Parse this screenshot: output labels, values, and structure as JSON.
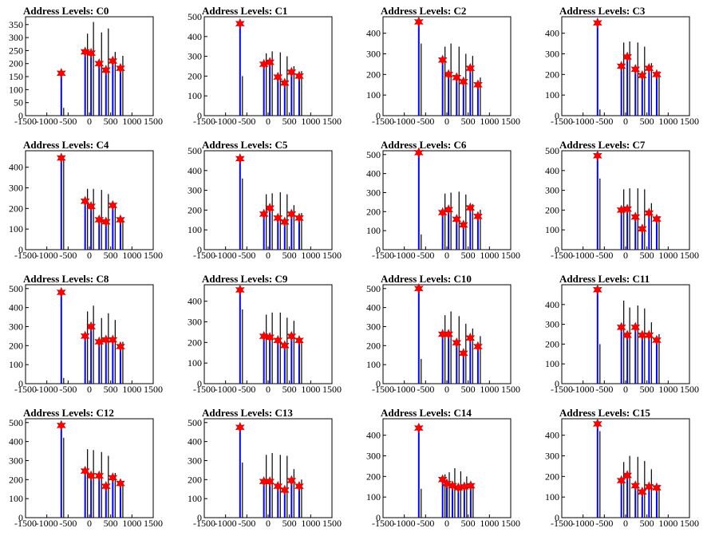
{
  "colors": {
    "frame": "#000000",
    "black_lines": "#000000",
    "blue_lines": "#0000ff",
    "markers": "#ff0000"
  },
  "chart_data": [
    {
      "type": "bar",
      "title": "Address Levels: C0",
      "xlim": [
        -1500,
        1500
      ],
      "ylim": [
        0,
        380
      ],
      "xticks": [
        "-1500",
        "-1000",
        "-500",
        "0",
        "500",
        "1000",
        "1500"
      ],
      "yticks": [
        "0",
        "50",
        "100",
        "150",
        "200",
        "250",
        "300",
        "350"
      ],
      "x": [
        -660,
        -100,
        40,
        230,
        390,
        550,
        730
      ],
      "black_values": [
        30,
        315,
        360,
        320,
        335,
        245,
        230
      ],
      "blue_values": [
        165,
        250,
        250,
        210,
        180,
        220,
        185
      ],
      "star_values": [
        163,
        245,
        240,
        200,
        175,
        210,
        182
      ]
    },
    {
      "type": "bar",
      "title": "Address Levels: C1",
      "xlim": [
        -1500,
        1500
      ],
      "ylim": [
        0,
        500
      ],
      "xticks": [
        "-1500",
        "-1000",
        "-500",
        "0",
        "500",
        "1000",
        "1500"
      ],
      "yticks": [
        "0",
        "100",
        "200",
        "300",
        "400",
        "500"
      ],
      "x": [
        -660,
        -100,
        40,
        230,
        390,
        550,
        730
      ],
      "black_values": [
        200,
        315,
        325,
        320,
        300,
        250,
        225
      ],
      "blue_values": [
        470,
        270,
        280,
        200,
        175,
        230,
        210
      ],
      "star_values": [
        465,
        260,
        270,
        195,
        165,
        220,
        200
      ]
    },
    {
      "type": "bar",
      "title": "Address Levels: C2",
      "xlim": [
        -1500,
        1500
      ],
      "ylim": [
        0,
        480
      ],
      "xticks": [
        "-1500",
        "-1000",
        "-500",
        "0",
        "500",
        "1000",
        "1500"
      ],
      "yticks": [
        "0",
        "100",
        "200",
        "300",
        "400"
      ],
      "x": [
        -660,
        -100,
        40,
        230,
        390,
        550,
        730
      ],
      "black_values": [
        350,
        335,
        350,
        335,
        300,
        290,
        185
      ],
      "blue_values": [
        460,
        280,
        210,
        195,
        175,
        240,
        155
      ],
      "star_values": [
        455,
        270,
        200,
        185,
        165,
        230,
        150
      ]
    },
    {
      "type": "bar",
      "title": "Address Levels: C3",
      "xlim": [
        -1500,
        1500
      ],
      "ylim": [
        0,
        480
      ],
      "xticks": [
        "-1500",
        "-1000",
        "-500",
        "0",
        "500",
        "1000",
        "1500"
      ],
      "yticks": [
        "0",
        "100",
        "200",
        "300",
        "400"
      ],
      "x": [
        -660,
        -100,
        40,
        230,
        390,
        550,
        730
      ],
      "black_values": [
        30,
        355,
        360,
        355,
        335,
        255,
        215
      ],
      "blue_values": [
        455,
        245,
        295,
        235,
        205,
        240,
        210
      ],
      "star_values": [
        450,
        240,
        285,
        225,
        195,
        230,
        200
      ]
    },
    {
      "type": "bar",
      "title": "Address Levels: C4",
      "xlim": [
        -1500,
        1500
      ],
      "ylim": [
        0,
        480
      ],
      "xticks": [
        "-1500",
        "-1000",
        "-500",
        "0",
        "500",
        "1000",
        "1500"
      ],
      "yticks": [
        "0",
        "100",
        "200",
        "300",
        "400"
      ],
      "x": [
        -660,
        -100,
        40,
        230,
        390,
        550,
        730
      ],
      "black_values": [
        440,
        295,
        295,
        290,
        270,
        225,
        155
      ],
      "blue_values": [
        450,
        245,
        220,
        150,
        145,
        225,
        150
      ],
      "star_values": [
        445,
        235,
        210,
        145,
        135,
        215,
        145
      ]
    },
    {
      "type": "bar",
      "title": "Address Levels: C5",
      "xlim": [
        -1500,
        1500
      ],
      "ylim": [
        0,
        500
      ],
      "xticks": [
        "-1500",
        "-1000",
        "-500",
        "0",
        "500",
        "1000",
        "1500"
      ],
      "yticks": [
        "0",
        "100",
        "200",
        "300",
        "400",
        "500"
      ],
      "x": [
        -660,
        -100,
        40,
        230,
        390,
        550,
        730
      ],
      "black_values": [
        360,
        280,
        285,
        290,
        280,
        225,
        185
      ],
      "blue_values": [
        470,
        190,
        220,
        170,
        150,
        190,
        165
      ],
      "star_values": [
        460,
        180,
        210,
        160,
        140,
        180,
        160
      ]
    },
    {
      "type": "bar",
      "title": "Address Levels: C6",
      "xlim": [
        -1500,
        1500
      ],
      "ylim": [
        0,
        520
      ],
      "xticks": [
        "-1500",
        "-1000",
        "-500",
        "0",
        "500",
        "1000",
        "1500"
      ],
      "yticks": [
        "0",
        "100",
        "200",
        "300",
        "400",
        "500"
      ],
      "x": [
        -660,
        -100,
        40,
        230,
        390,
        550,
        730
      ],
      "black_values": [
        80,
        295,
        300,
        305,
        290,
        240,
        210
      ],
      "blue_values": [
        515,
        205,
        215,
        170,
        140,
        225,
        180
      ],
      "star_values": [
        510,
        195,
        210,
        160,
        130,
        220,
        175
      ]
    },
    {
      "type": "bar",
      "title": "Address Levels: C7",
      "xlim": [
        -1500,
        1500
      ],
      "ylim": [
        0,
        500
      ],
      "xticks": [
        "-1500",
        "-1000",
        "-500",
        "0",
        "500",
        "1000",
        "1500"
      ],
      "yticks": [
        "0",
        "100",
        "200",
        "300",
        "400",
        "500"
      ],
      "x": [
        -660,
        -100,
        40,
        230,
        390,
        550,
        730
      ],
      "black_values": [
        360,
        305,
        310,
        310,
        305,
        235,
        170
      ],
      "blue_values": [
        485,
        210,
        215,
        175,
        110,
        190,
        165
      ],
      "star_values": [
        475,
        200,
        205,
        165,
        105,
        185,
        155
      ]
    },
    {
      "type": "bar",
      "title": "Address Levels: C8",
      "xlim": [
        -1500,
        1500
      ],
      "ylim": [
        0,
        520
      ],
      "xticks": [
        "-1500",
        "-1000",
        "-500",
        "0",
        "500",
        "1000",
        "1500"
      ],
      "yticks": [
        "0",
        "100",
        "200",
        "300",
        "400",
        "500"
      ],
      "x": [
        -660,
        -100,
        40,
        230,
        390,
        550,
        730
      ],
      "black_values": [
        30,
        380,
        410,
        345,
        370,
        335,
        220
      ],
      "blue_values": [
        490,
        255,
        305,
        225,
        240,
        235,
        200
      ],
      "star_values": [
        480,
        250,
        300,
        220,
        230,
        230,
        195
      ]
    },
    {
      "type": "bar",
      "title": "Address Levels: C9",
      "xlim": [
        -1500,
        1500
      ],
      "ylim": [
        0,
        480
      ],
      "xticks": [
        "-1500",
        "-1000",
        "-500",
        "0",
        "500",
        "1000",
        "1500"
      ],
      "yticks": [
        "0",
        "100",
        "200",
        "300",
        "400"
      ],
      "x": [
        -660,
        -100,
        40,
        230,
        390,
        550,
        730
      ],
      "black_values": [
        360,
        335,
        345,
        345,
        320,
        305,
        210
      ],
      "blue_values": [
        460,
        235,
        230,
        220,
        195,
        235,
        215
      ],
      "star_values": [
        455,
        230,
        225,
        210,
        185,
        230,
        210
      ]
    },
    {
      "type": "bar",
      "title": "Address Levels: C10",
      "xlim": [
        -1500,
        1500
      ],
      "ylim": [
        0,
        520
      ],
      "xticks": [
        "-1500",
        "-1000",
        "-500",
        "0",
        "500",
        "1000",
        "1500"
      ],
      "yticks": [
        "0",
        "100",
        "200",
        "300",
        "400",
        "500"
      ],
      "x": [
        -660,
        -100,
        40,
        230,
        390,
        550,
        730
      ],
      "black_values": [
        130,
        360,
        380,
        355,
        315,
        290,
        250
      ],
      "blue_values": [
        505,
        265,
        265,
        220,
        170,
        245,
        200
      ],
      "star_values": [
        500,
        260,
        260,
        215,
        160,
        240,
        195
      ]
    },
    {
      "type": "bar",
      "title": "Address Levels: C11",
      "xlim": [
        -1500,
        1500
      ],
      "ylim": [
        0,
        500
      ],
      "xticks": [
        "-1500",
        "-1000",
        "-500",
        "0",
        "500",
        "1000",
        "1500"
      ],
      "yticks": [
        "0",
        "100",
        "200",
        "300",
        "400"
      ],
      "x": [
        -660,
        -100,
        40,
        230,
        390,
        550,
        730
      ],
      "black_values": [
        200,
        420,
        385,
        395,
        380,
        310,
        250
      ],
      "blue_values": [
        485,
        290,
        255,
        290,
        255,
        255,
        225
      ],
      "star_values": [
        475,
        285,
        245,
        285,
        245,
        245,
        220
      ]
    },
    {
      "type": "bar",
      "title": "Address Levels: C12",
      "xlim": [
        -1500,
        1500
      ],
      "ylim": [
        0,
        520
      ],
      "xticks": [
        "-1500",
        "-1000",
        "-500",
        "0",
        "500",
        "1000",
        "1500"
      ],
      "yticks": [
        "0",
        "100",
        "200",
        "300",
        "400",
        "500"
      ],
      "x": [
        -660,
        -100,
        40,
        230,
        390,
        550,
        730
      ],
      "black_values": [
        420,
        360,
        355,
        345,
        325,
        235,
        190
      ],
      "blue_values": [
        495,
        255,
        225,
        225,
        170,
        215,
        190
      ],
      "star_values": [
        485,
        245,
        220,
        220,
        165,
        210,
        180
      ]
    },
    {
      "type": "bar",
      "title": "Address Levels: C13",
      "xlim": [
        -1500,
        1500
      ],
      "ylim": [
        0,
        520
      ],
      "xticks": [
        "-1500",
        "-1000",
        "-500",
        "0",
        "500",
        "1000",
        "1500"
      ],
      "yticks": [
        "0",
        "100",
        "200",
        "300",
        "400",
        "500"
      ],
      "x": [
        -660,
        -100,
        40,
        230,
        390,
        550,
        730
      ],
      "black_values": [
        290,
        330,
        340,
        330,
        325,
        255,
        200
      ],
      "blue_values": [
        480,
        195,
        195,
        170,
        150,
        205,
        170
      ],
      "star_values": [
        475,
        190,
        190,
        165,
        145,
        195,
        165
      ]
    },
    {
      "type": "bar",
      "title": "Address Levels: C14",
      "xlim": [
        -1500,
        1500
      ],
      "ylim": [
        0,
        480
      ],
      "xticks": [
        "-1500",
        "-1000",
        "-500",
        "0",
        "500",
        "1000",
        "1500"
      ],
      "yticks": [
        "0",
        "100",
        "200",
        "300",
        "400"
      ],
      "x": [
        -660,
        -100,
        0,
        130,
        270,
        410,
        560
      ],
      "black_values": [
        140,
        210,
        220,
        240,
        225,
        200,
        160
      ],
      "blue_values": [
        440,
        190,
        175,
        160,
        150,
        160,
        160
      ],
      "star_values": [
        435,
        185,
        165,
        155,
        145,
        150,
        155
      ]
    },
    {
      "type": "bar",
      "title": "Address Levels: C15",
      "xlim": [
        -1500,
        1500
      ],
      "ylim": [
        0,
        480
      ],
      "xticks": [
        "-1500",
        "-1000",
        "-500",
        "0",
        "500",
        "1000",
        "1500"
      ],
      "yticks": [
        "0",
        "100",
        "200",
        "300",
        "400"
      ],
      "x": [
        -660,
        -100,
        40,
        230,
        390,
        550,
        730
      ],
      "black_values": [
        420,
        270,
        300,
        295,
        275,
        235,
        160
      ],
      "blue_values": [
        460,
        190,
        210,
        165,
        130,
        160,
        150
      ],
      "star_values": [
        455,
        180,
        205,
        155,
        125,
        150,
        145
      ]
    }
  ]
}
